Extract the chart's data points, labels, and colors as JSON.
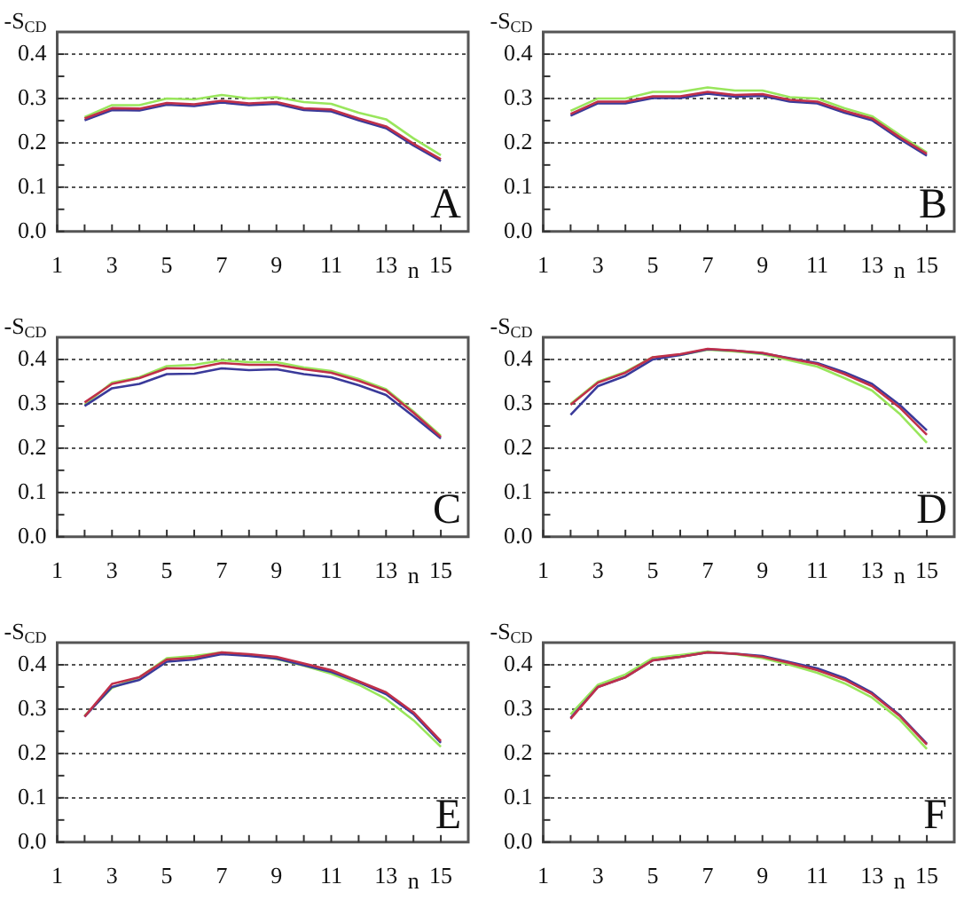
{
  "chart_data": [
    {
      "type": "line",
      "ylabel": "-S$_{CD}$",
      "xlabel": "n",
      "annotations": [
        "A"
      ],
      "grid": "y",
      "marker": "none",
      "line_style": "solid",
      "x": [
        2,
        3,
        4,
        5,
        6,
        7,
        8,
        9,
        10,
        11,
        12,
        13,
        14,
        15
      ],
      "xlim": [
        1,
        16
      ],
      "xticks": [
        1,
        {
          "value": 2,
          "label": null
        },
        3,
        {
          "value": 4,
          "label": null
        },
        5,
        {
          "value": 6,
          "label": null
        },
        7,
        {
          "value": 8,
          "label": null
        },
        9,
        {
          "value": 10,
          "label": null
        },
        11,
        {
          "value": 12,
          "label": null
        },
        13,
        {
          "value": 14,
          "label": null
        },
        15
      ],
      "ylim": [
        0,
        0.45
      ],
      "yticks": [
        {
          "value": 0,
          "label": "0.0"
        },
        {
          "value": 0.05,
          "label": null
        },
        0.1,
        {
          "value": 0.15,
          "label": null
        },
        0.2,
        {
          "value": 0.25,
          "label": null
        },
        0.3,
        {
          "value": 0.35,
          "label": null
        },
        0.4
      ],
      "series": [
        {
          "color": "#99e65c",
          "values": [
            0.258,
            0.285,
            0.285,
            0.3,
            0.298,
            0.308,
            0.3,
            0.303,
            0.292,
            0.288,
            0.268,
            0.253,
            0.21,
            0.172
          ]
        },
        {
          "color": "#3a3a9a",
          "values": [
            0.251,
            0.274,
            0.273,
            0.286,
            0.283,
            0.291,
            0.285,
            0.288,
            0.274,
            0.271,
            0.251,
            0.233,
            0.194,
            0.159
          ]
        },
        {
          "color": "#c0304a",
          "values": [
            0.255,
            0.278,
            0.277,
            0.29,
            0.287,
            0.295,
            0.289,
            0.292,
            0.278,
            0.275,
            0.255,
            0.237,
            0.198,
            0.163
          ]
        }
      ]
    },
    {
      "type": "line",
      "ylabel": "-S$_{CD}$",
      "xlabel": "n",
      "annotations": [
        "B"
      ],
      "grid": "y",
      "marker": "none",
      "line_style": "solid",
      "x": [
        2,
        3,
        4,
        5,
        6,
        7,
        8,
        9,
        10,
        11,
        12,
        13,
        14,
        15
      ],
      "xlim": [
        1,
        16
      ],
      "xticks": [
        1,
        {
          "value": 2,
          "label": null
        },
        3,
        {
          "value": 4,
          "label": null
        },
        5,
        {
          "value": 6,
          "label": null
        },
        7,
        {
          "value": 8,
          "label": null
        },
        9,
        {
          "value": 10,
          "label": null
        },
        11,
        {
          "value": 12,
          "label": null
        },
        13,
        {
          "value": 14,
          "label": null
        },
        15
      ],
      "ylim": [
        0,
        0.45
      ],
      "yticks": [
        {
          "value": 0,
          "label": "0.0"
        },
        {
          "value": 0.05,
          "label": null
        },
        0.1,
        {
          "value": 0.15,
          "label": null
        },
        0.2,
        {
          "value": 0.25,
          "label": null
        },
        0.3,
        {
          "value": 0.35,
          "label": null
        },
        0.4
      ],
      "series": [
        {
          "color": "#99e65c",
          "values": [
            0.272,
            0.3,
            0.3,
            0.315,
            0.315,
            0.325,
            0.318,
            0.318,
            0.303,
            0.3,
            0.278,
            0.26,
            0.218,
            0.178
          ]
        },
        {
          "color": "#3a3a9a",
          "values": [
            0.261,
            0.289,
            0.289,
            0.301,
            0.301,
            0.311,
            0.304,
            0.306,
            0.293,
            0.289,
            0.268,
            0.251,
            0.209,
            0.171
          ]
        },
        {
          "color": "#c0304a",
          "values": [
            0.265,
            0.293,
            0.293,
            0.305,
            0.305,
            0.315,
            0.308,
            0.31,
            0.297,
            0.293,
            0.272,
            0.255,
            0.213,
            0.175
          ]
        }
      ]
    },
    {
      "type": "line",
      "ylabel": "-S$_{CD}$",
      "xlabel": "n",
      "annotations": [
        "C"
      ],
      "grid": "y",
      "marker": "none",
      "line_style": "solid",
      "x": [
        2,
        3,
        4,
        5,
        6,
        7,
        8,
        9,
        10,
        11,
        12,
        13,
        14,
        15
      ],
      "xlim": [
        1,
        16
      ],
      "xticks": [
        1,
        {
          "value": 2,
          "label": null
        },
        3,
        {
          "value": 4,
          "label": null
        },
        5,
        {
          "value": 6,
          "label": null
        },
        7,
        {
          "value": 8,
          "label": null
        },
        9,
        {
          "value": 10,
          "label": null
        },
        11,
        {
          "value": 12,
          "label": null
        },
        13,
        {
          "value": 14,
          "label": null
        },
        15
      ],
      "ylim": [
        0,
        0.45
      ],
      "yticks": [
        {
          "value": 0,
          "label": "0.0"
        },
        {
          "value": 0.05,
          "label": null
        },
        0.1,
        {
          "value": 0.15,
          "label": null
        },
        0.2,
        {
          "value": 0.25,
          "label": null
        },
        0.3,
        {
          "value": 0.35,
          "label": null
        },
        0.4
      ],
      "series": [
        {
          "color": "#99e65c",
          "values": [
            0.298,
            0.348,
            0.36,
            0.385,
            0.388,
            0.398,
            0.394,
            0.394,
            0.382,
            0.374,
            0.356,
            0.333,
            0.283,
            0.228
          ]
        },
        {
          "color": "#3a3a9a",
          "values": [
            0.295,
            0.335,
            0.345,
            0.367,
            0.368,
            0.38,
            0.376,
            0.378,
            0.367,
            0.36,
            0.342,
            0.32,
            0.272,
            0.222
          ]
        },
        {
          "color": "#c0304a",
          "values": [
            0.303,
            0.345,
            0.358,
            0.38,
            0.38,
            0.392,
            0.388,
            0.388,
            0.378,
            0.37,
            0.352,
            0.33,
            0.28,
            0.225
          ]
        }
      ]
    },
    {
      "type": "line",
      "ylabel": "-S$_{CD}$",
      "xlabel": "n",
      "annotations": [
        "D"
      ],
      "grid": "y",
      "marker": "none",
      "line_style": "solid",
      "x": [
        2,
        3,
        4,
        5,
        6,
        7,
        8,
        9,
        10,
        11,
        12,
        13,
        14,
        15
      ],
      "xlim": [
        1,
        16
      ],
      "xticks": [
        1,
        {
          "value": 2,
          "label": null
        },
        3,
        {
          "value": 4,
          "label": null
        },
        5,
        {
          "value": 6,
          "label": null
        },
        7,
        {
          "value": 8,
          "label": null
        },
        9,
        {
          "value": 10,
          "label": null
        },
        11,
        {
          "value": 12,
          "label": null
        },
        13,
        {
          "value": 14,
          "label": null
        },
        15
      ],
      "ylim": [
        0,
        0.45
      ],
      "yticks": [
        {
          "value": 0,
          "label": "0.0"
        },
        {
          "value": 0.05,
          "label": null
        },
        0.1,
        {
          "value": 0.15,
          "label": null
        },
        0.2,
        {
          "value": 0.25,
          "label": null
        },
        0.3,
        {
          "value": 0.35,
          "label": null
        },
        0.4
      ],
      "series": [
        {
          "color": "#99e65c",
          "values": [
            0.3,
            0.35,
            0.372,
            0.405,
            0.41,
            0.422,
            0.418,
            0.412,
            0.398,
            0.384,
            0.358,
            0.33,
            0.278,
            0.212
          ]
        },
        {
          "color": "#3a3a9a",
          "values": [
            0.275,
            0.34,
            0.363,
            0.4,
            0.41,
            0.423,
            0.42,
            0.414,
            0.403,
            0.392,
            0.371,
            0.345,
            0.298,
            0.24
          ]
        },
        {
          "color": "#c0304a",
          "values": [
            0.298,
            0.348,
            0.37,
            0.405,
            0.412,
            0.424,
            0.42,
            0.415,
            0.402,
            0.39,
            0.367,
            0.34,
            0.292,
            0.23
          ]
        }
      ]
    },
    {
      "type": "line",
      "ylabel": "-S$_{CD}$",
      "xlabel": "n",
      "annotations": [
        "E"
      ],
      "grid": "y",
      "marker": "none",
      "line_style": "solid",
      "x": [
        2,
        3,
        4,
        5,
        6,
        7,
        8,
        9,
        10,
        11,
        12,
        13,
        14,
        15
      ],
      "xlim": [
        1,
        16
      ],
      "xticks": [
        1,
        {
          "value": 2,
          "label": null
        },
        3,
        {
          "value": 4,
          "label": null
        },
        5,
        {
          "value": 6,
          "label": null
        },
        7,
        {
          "value": 8,
          "label": null
        },
        9,
        {
          "value": 10,
          "label": null
        },
        11,
        {
          "value": 12,
          "label": null
        },
        13,
        {
          "value": 14,
          "label": null
        },
        15
      ],
      "ylim": [
        0,
        0.45
      ],
      "yticks": [
        {
          "value": 0,
          "label": "0.0"
        },
        {
          "value": 0.05,
          "label": null
        },
        0.1,
        {
          "value": 0.15,
          "label": null
        },
        0.2,
        {
          "value": 0.25,
          "label": null
        },
        0.3,
        {
          "value": 0.35,
          "label": null
        },
        0.4
      ],
      "series": [
        {
          "color": "#99e65c",
          "values": [
            0.285,
            0.348,
            0.372,
            0.415,
            0.42,
            0.428,
            0.422,
            0.413,
            0.398,
            0.38,
            0.355,
            0.323,
            0.275,
            0.215
          ]
        },
        {
          "color": "#3a3a9a",
          "values": [
            0.283,
            0.35,
            0.366,
            0.407,
            0.412,
            0.424,
            0.42,
            0.414,
            0.399,
            0.384,
            0.361,
            0.334,
            0.289,
            0.224
          ]
        },
        {
          "color": "#c0304a",
          "values": [
            0.283,
            0.357,
            0.372,
            0.412,
            0.416,
            0.428,
            0.424,
            0.418,
            0.403,
            0.388,
            0.363,
            0.338,
            0.293,
            0.228
          ]
        }
      ]
    },
    {
      "type": "line",
      "ylabel": "-S$_{CD}$",
      "xlabel": "n",
      "annotations": [
        "F"
      ],
      "grid": "y",
      "marker": "none",
      "line_style": "solid",
      "x": [
        2,
        3,
        4,
        5,
        6,
        7,
        8,
        9,
        10,
        11,
        12,
        13,
        14,
        15
      ],
      "xlim": [
        1,
        16
      ],
      "xticks": [
        1,
        {
          "value": 2,
          "label": null
        },
        3,
        {
          "value": 4,
          "label": null
        },
        5,
        {
          "value": 6,
          "label": null
        },
        7,
        {
          "value": 8,
          "label": null
        },
        9,
        {
          "value": 10,
          "label": null
        },
        11,
        {
          "value": 12,
          "label": null
        },
        13,
        {
          "value": 14,
          "label": null
        },
        15
      ],
      "ylim": [
        0,
        0.45
      ],
      "yticks": [
        {
          "value": 0,
          "label": "0.0"
        },
        {
          "value": 0.05,
          "label": null
        },
        0.1,
        {
          "value": 0.15,
          "label": null
        },
        0.2,
        {
          "value": 0.25,
          "label": null
        },
        0.3,
        {
          "value": 0.35,
          "label": null
        },
        0.4
      ],
      "series": [
        {
          "color": "#99e65c",
          "values": [
            0.288,
            0.355,
            0.378,
            0.415,
            0.422,
            0.43,
            0.424,
            0.415,
            0.4,
            0.382,
            0.358,
            0.326,
            0.277,
            0.21
          ]
        },
        {
          "color": "#3a3a9a",
          "values": [
            0.28,
            0.35,
            0.372,
            0.41,
            0.418,
            0.428,
            0.425,
            0.42,
            0.406,
            0.392,
            0.37,
            0.337,
            0.287,
            0.222
          ]
        },
        {
          "color": "#c0304a",
          "values": [
            0.278,
            0.35,
            0.372,
            0.41,
            0.418,
            0.428,
            0.425,
            0.418,
            0.404,
            0.388,
            0.366,
            0.334,
            0.285,
            0.22
          ]
        }
      ]
    }
  ]
}
